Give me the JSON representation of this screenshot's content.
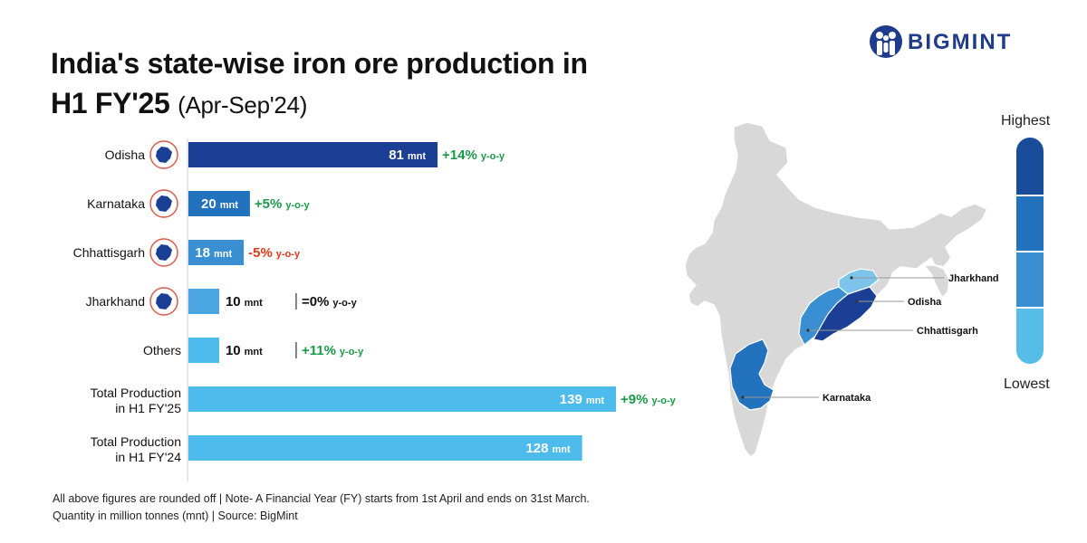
{
  "title_main": "India's state-wise iron ore production in",
  "title_line2_bold": "H1 FY'25",
  "title_line2_sub": "(Apr-Sep'24)",
  "brand": "BIGMINT",
  "footnote": {
    "line1": "All above figures are rounded off | Note- A Financial Year (FY) starts from 1st April and ends on 31st March.",
    "line2": "Quantity in million tonnes (mnt) | Source: BigMint"
  },
  "unit_label": "mnt",
  "chart_data": {
    "type": "bar",
    "orientation": "horizontal",
    "xlim": [
      0,
      150
    ],
    "categories": [
      "Odisha",
      "Karnataka",
      "Chhattisgarh",
      "Jharkhand",
      "Others",
      "Total Production in H1 FY'25",
      "Total Production in H1 FY'24"
    ],
    "category_lines": [
      [
        "Odisha"
      ],
      [
        "Karnataka"
      ],
      [
        "Chhattisgarh"
      ],
      [
        "Jharkhand"
      ],
      [
        "Others"
      ],
      [
        "Total Production",
        "in H1 FY'25"
      ],
      [
        "Total Production",
        "in H1 FY'24"
      ]
    ],
    "values": [
      81,
      20,
      18,
      10,
      10,
      139,
      128
    ],
    "value_labels": [
      "81",
      "20",
      "18",
      "10",
      "10",
      "139",
      "128"
    ],
    "yoy_values": [
      "+14%",
      "+5%",
      "-5%",
      "=0%",
      "+11%",
      "+9%",
      ""
    ],
    "yoy_suffix": "y-o-y",
    "bar_colors": [
      "#1a3f94",
      "#2272bd",
      "#3a8fd2",
      "#4aa5e0",
      "#4dbbec",
      "#4dbbec",
      "#4dbbec"
    ],
    "yoy_colors": [
      "#1a9a48",
      "#1a9a48",
      "#e0391a",
      "#111111",
      "#1a9a48",
      "#1a9a48",
      "#111111"
    ],
    "state_icons": [
      true,
      true,
      true,
      true,
      false,
      false,
      false
    ]
  },
  "map": {
    "labels": [
      "Jharkhand",
      "Odisha",
      "Chhattisgarh",
      "Karnataka"
    ],
    "legend_high": "Highest",
    "legend_low": "Lowest",
    "legend_colors": [
      "#1a4c9c",
      "#2272bd",
      "#3a8fd2",
      "#56bde9"
    ],
    "base_color": "#d8d8d8"
  }
}
